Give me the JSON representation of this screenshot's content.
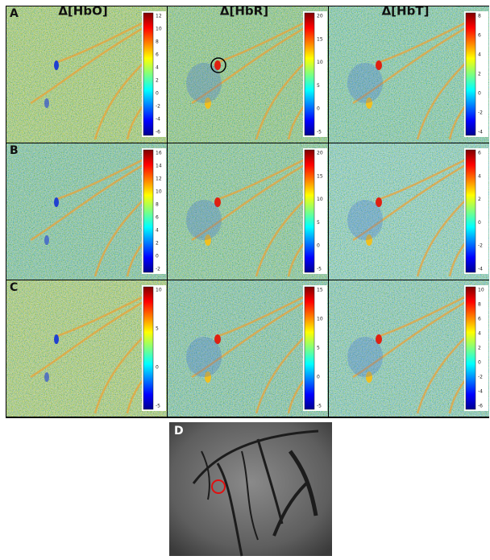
{
  "headers": [
    "Δ[HbO]",
    "Δ[HbR]",
    "Δ[HbT]"
  ],
  "rows": [
    {
      "label": "A",
      "colorbars": [
        [
          12,
          10,
          8,
          6,
          4,
          2,
          0,
          -2,
          -4,
          -6
        ],
        [
          20,
          15,
          10,
          5,
          0,
          -5
        ],
        [
          8,
          6,
          4,
          2,
          0,
          -2,
          -4
        ]
      ]
    },
    {
      "label": "B",
      "colorbars": [
        [
          16,
          14,
          12,
          10,
          8,
          6,
          4,
          2,
          0,
          -2
        ],
        [
          20,
          15,
          10,
          5,
          0,
          -5
        ],
        [
          6,
          4,
          2,
          0,
          -2,
          -4
        ]
      ]
    },
    {
      "label": "C",
      "colorbars": [
        [
          10,
          5,
          0,
          -5
        ],
        [
          15,
          10,
          5,
          0,
          -5
        ],
        [
          10,
          8,
          6,
          4,
          2,
          0,
          -2,
          -4,
          -6
        ]
      ]
    }
  ],
  "photo": {
    "label": "D"
  }
}
